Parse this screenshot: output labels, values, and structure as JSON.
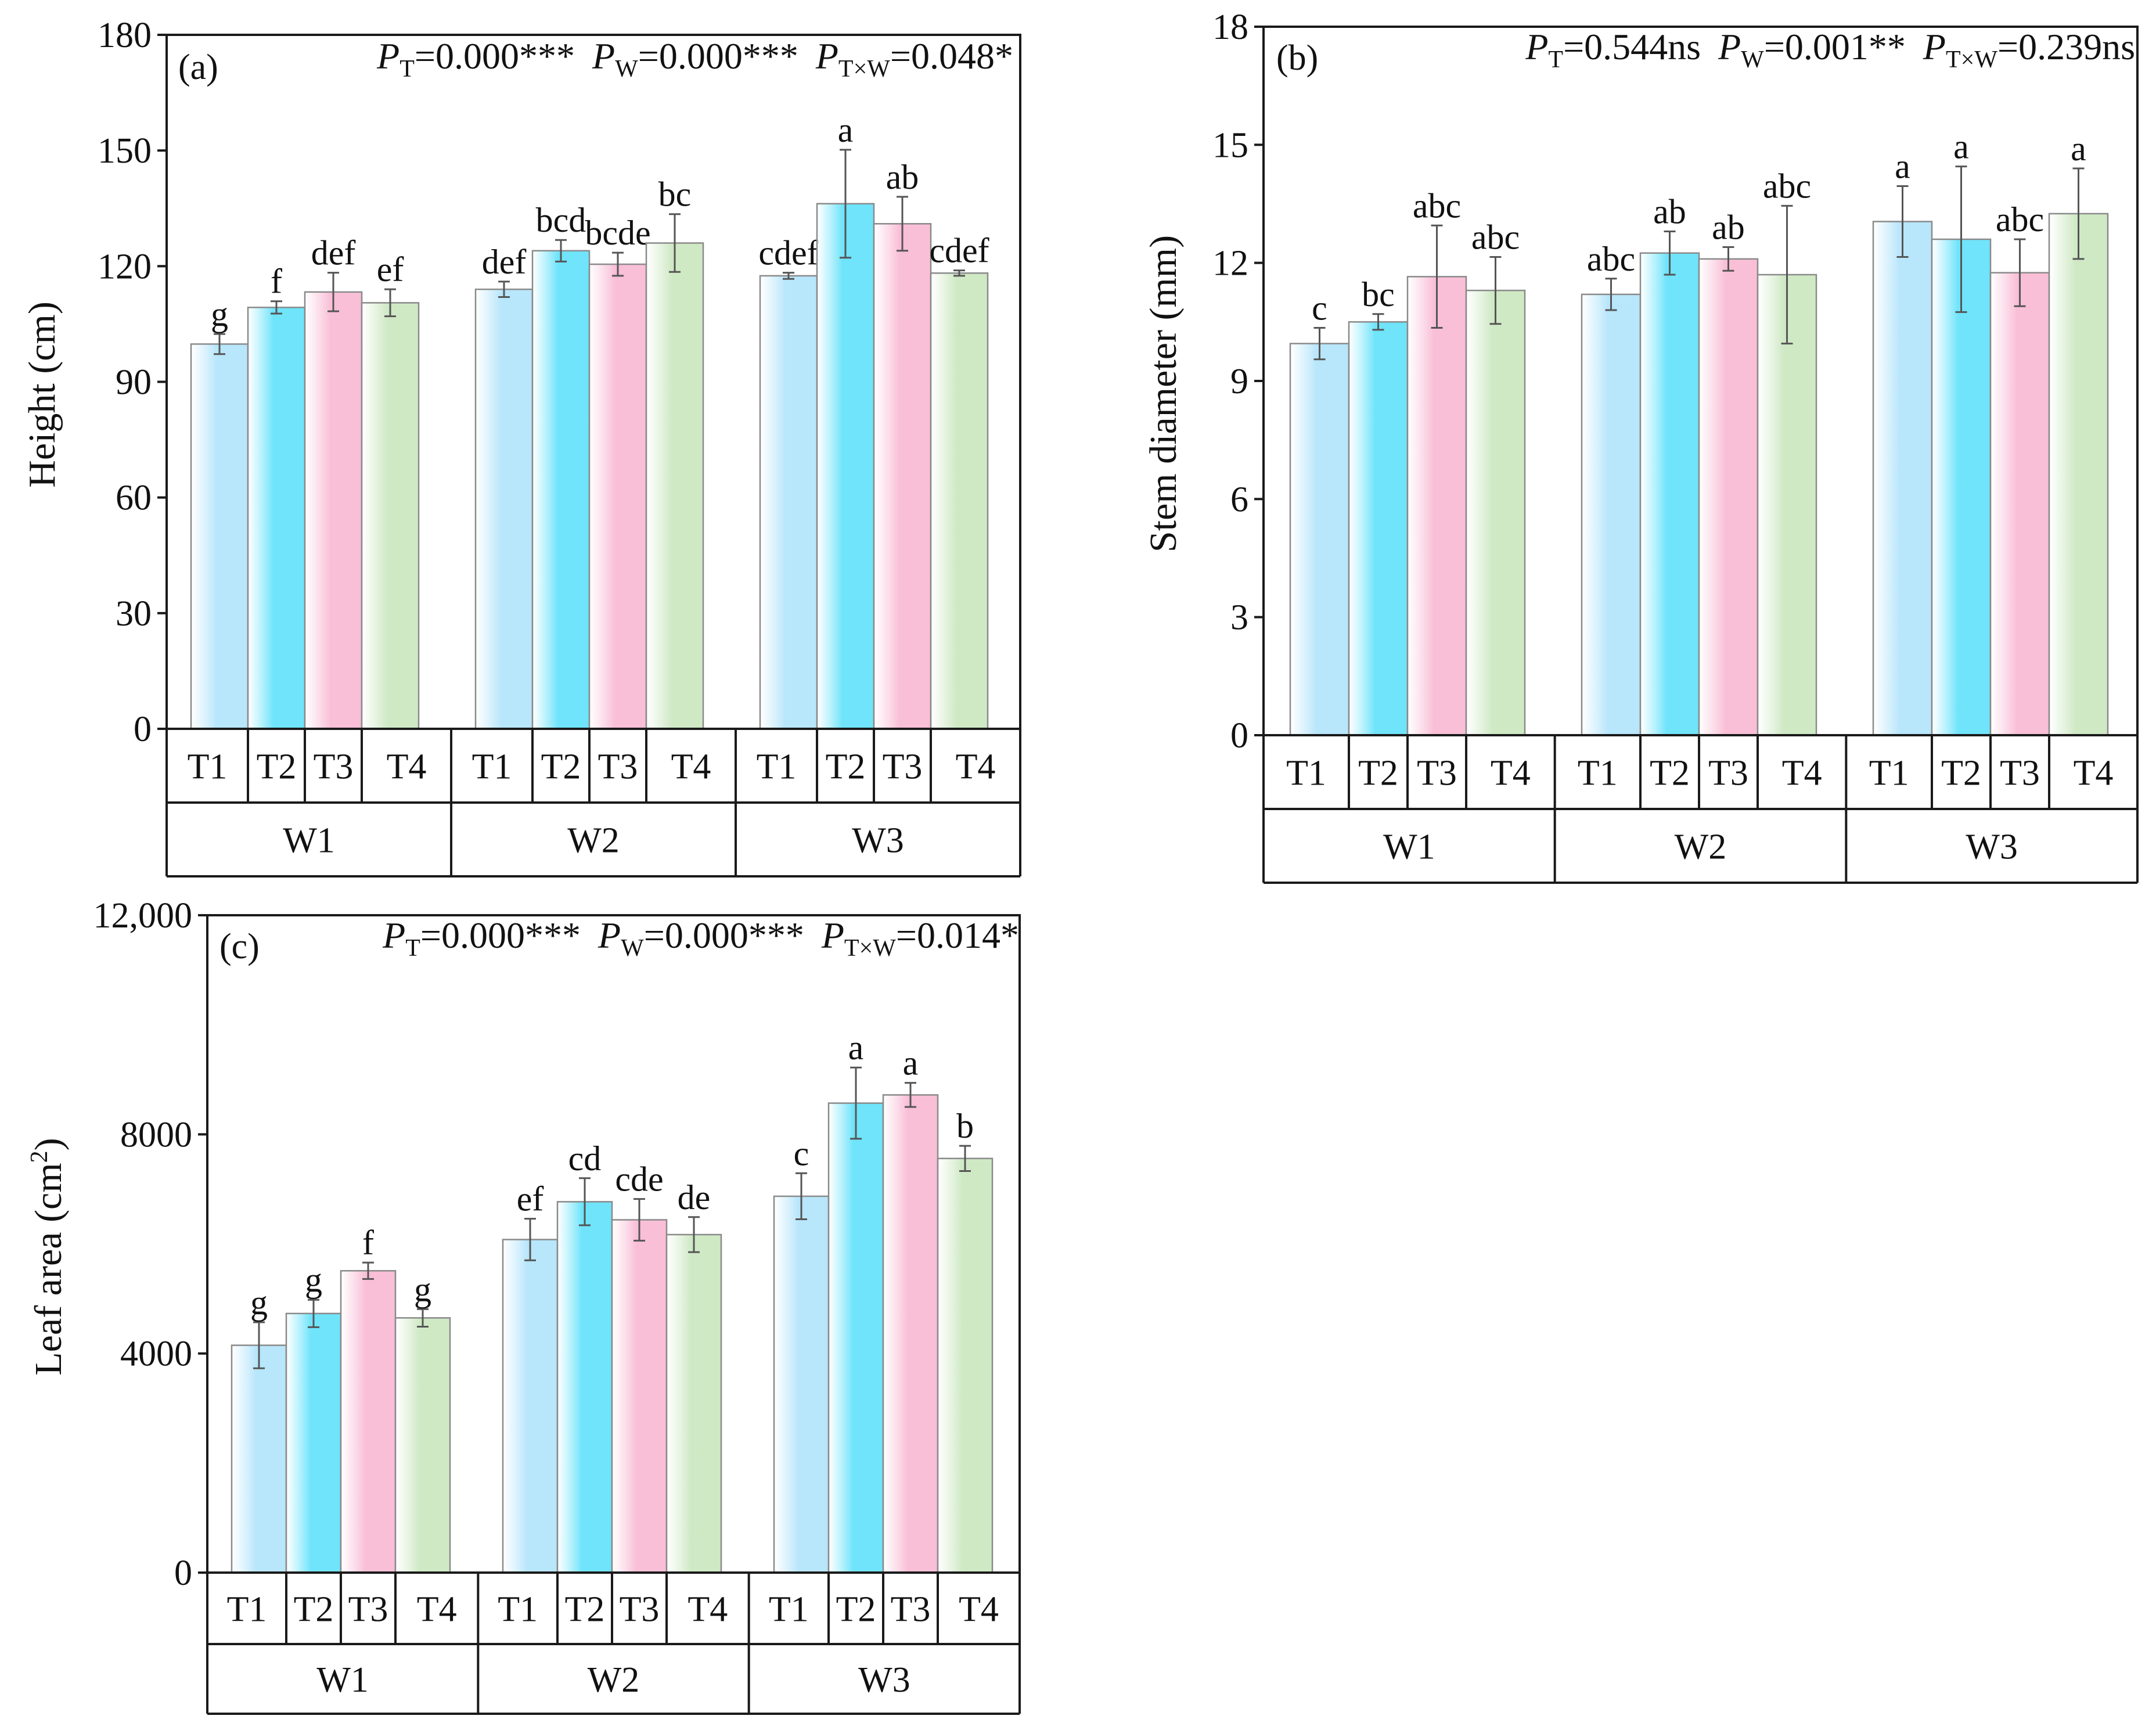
{
  "colors": {
    "T1": "#b8e6fb",
    "T2": "#6fe4fb",
    "T3": "#f9bfd6",
    "T4": "#cfe9c5",
    "axis": "#1a1a1a"
  },
  "chart_data": [
    {
      "type": "bar",
      "panel": "(a)",
      "ylabel": "Height (cm)",
      "ylim": [
        0,
        180
      ],
      "yticks": [
        "0",
        "30",
        "60",
        "90",
        "120",
        "150",
        "180"
      ],
      "ytick_values": [
        0,
        30,
        60,
        90,
        120,
        150,
        180
      ],
      "stats": {
        "PT": "=0.000***",
        "PW": "=0.000***",
        "PTW": "=0.048*"
      },
      "groups": [
        "W1",
        "W2",
        "W3"
      ],
      "categories": [
        "T1",
        "T2",
        "T3",
        "T4"
      ],
      "series": [
        {
          "group": "W1",
          "values": [
            99.8,
            109.3,
            113.3,
            110.5
          ],
          "errors": [
            2.6,
            1.6,
            5.0,
            3.5
          ],
          "letters": [
            "g",
            "f",
            "def",
            "ef"
          ]
        },
        {
          "group": "W2",
          "values": [
            114.0,
            124.0,
            120.5,
            126.0
          ],
          "errors": [
            2.0,
            2.8,
            3.0,
            7.5
          ],
          "letters": [
            "def",
            "bcd",
            "bcde",
            "bc"
          ]
        },
        {
          "group": "W3",
          "values": [
            117.5,
            136.2,
            131.0,
            118.2
          ],
          "errors": [
            0.8,
            14.0,
            7.0,
            0.7
          ],
          "letters": [
            "cdef",
            "a",
            "ab",
            "cdef"
          ]
        }
      ]
    },
    {
      "type": "bar",
      "panel": "(b)",
      "ylabel": "Stem diameter (mm)",
      "ylim": [
        0,
        18
      ],
      "yticks": [
        "0",
        "3",
        "6",
        "9",
        "12",
        "15",
        "18"
      ],
      "ytick_values": [
        0,
        3,
        6,
        9,
        12,
        15,
        18
      ],
      "stats": {
        "PT": "=0.544ns",
        "PW": "=0.001**",
        "PTW": "=0.239ns"
      },
      "groups": [
        "W1",
        "W2",
        "W3"
      ],
      "categories": [
        "T1",
        "T2",
        "T3",
        "T4"
      ],
      "series": [
        {
          "group": "W1",
          "values": [
            9.95,
            10.5,
            11.65,
            11.3
          ],
          "errors": [
            0.4,
            0.2,
            1.3,
            0.85
          ],
          "letters": [
            "c",
            "bc",
            "abc",
            "abc"
          ]
        },
        {
          "group": "W2",
          "values": [
            11.2,
            12.25,
            12.1,
            11.7
          ],
          "errors": [
            0.4,
            0.55,
            0.3,
            1.75
          ],
          "letters": [
            "abc",
            "ab",
            "ab",
            "abc"
          ]
        },
        {
          "group": "W3",
          "values": [
            13.05,
            12.6,
            11.75,
            13.25
          ],
          "errors": [
            0.9,
            1.85,
            0.85,
            1.15
          ],
          "letters": [
            "a",
            "a",
            "abc",
            "a"
          ]
        }
      ]
    },
    {
      "type": "bar",
      "panel": "(c)",
      "ylabel": "Leaf area (cm",
      "ylabel_sup": "2",
      "ylabel_end": ")",
      "ylim": [
        0,
        12000
      ],
      "yticks": [
        "0",
        "4000",
        "8000",
        "12,000"
      ],
      "ytick_values": [
        0,
        4000,
        8000,
        12000
      ],
      "stats": {
        "PT": "=0.000***",
        "PW": "=0.000***",
        "PTW": "=0.014*"
      },
      "groups": [
        "W1",
        "W2",
        "W3"
      ],
      "categories": [
        "T1",
        "T2",
        "T3",
        "T4"
      ],
      "series": [
        {
          "group": "W1",
          "values": [
            4150,
            4730,
            5510,
            4650
          ],
          "errors": [
            420,
            250,
            150,
            160
          ],
          "letters": [
            "g",
            "g",
            "f",
            "g"
          ]
        },
        {
          "group": "W2",
          "values": [
            6080,
            6770,
            6440,
            6170
          ],
          "errors": [
            380,
            430,
            380,
            320
          ],
          "letters": [
            "ef",
            "cd",
            "cde",
            "de"
          ]
        },
        {
          "group": "W3",
          "values": [
            6870,
            8570,
            8720,
            7560
          ],
          "errors": [
            420,
            650,
            220,
            230
          ],
          "letters": [
            "c",
            "a",
            "a",
            "b"
          ]
        }
      ]
    }
  ]
}
